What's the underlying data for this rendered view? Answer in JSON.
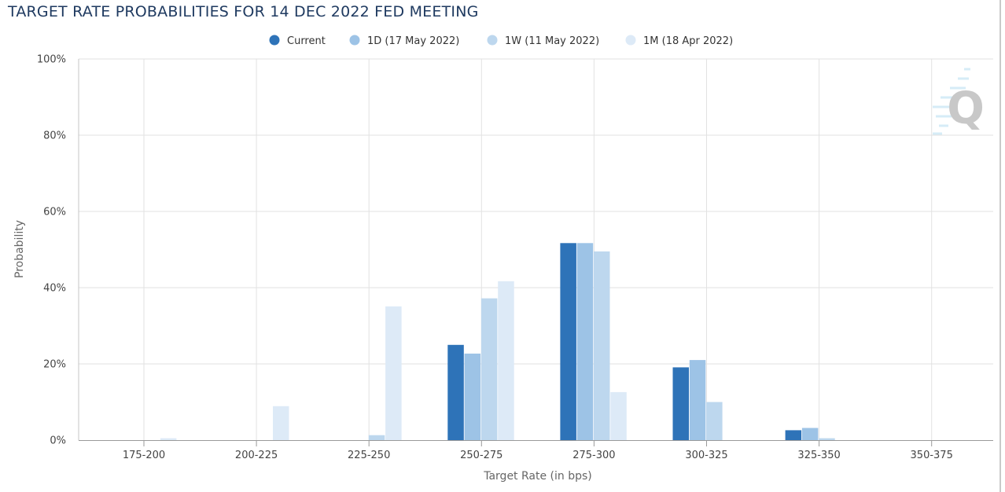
{
  "chart_data": {
    "type": "bar",
    "title": "TARGET RATE PROBABILITIES FOR 14 DEC 2022 FED MEETING",
    "xlabel": "Target Rate (in bps)",
    "ylabel": "Probability",
    "ylim": [
      0,
      100
    ],
    "y_ticks": [
      "0%",
      "20%",
      "40%",
      "60%",
      "80%",
      "100%"
    ],
    "legend_position": "top-center",
    "grid": true,
    "categories": [
      "175-200",
      "200-225",
      "225-250",
      "250-275",
      "275-300",
      "300-325",
      "325-350",
      "350-375"
    ],
    "series": [
      {
        "name": "Current",
        "color": "#2e73b8",
        "values": [
          0,
          0,
          0,
          25.0,
          51.7,
          19.1,
          2.6,
          0
        ]
      },
      {
        "name": "1D (17 May 2022)",
        "color": "#9dc3e6",
        "values": [
          0,
          0,
          0,
          22.7,
          51.7,
          21.0,
          3.2,
          0
        ]
      },
      {
        "name": "1W (11 May 2022)",
        "color": "#bdd7ee",
        "values": [
          0,
          0,
          1.3,
          37.2,
          49.5,
          10.0,
          0.5,
          0
        ]
      },
      {
        "name": "1M (18 Apr 2022)",
        "color": "#ddeaf7",
        "values": [
          0.5,
          8.9,
          35.1,
          41.7,
          12.6,
          0,
          0,
          0
        ]
      }
    ]
  },
  "watermark": {
    "letter": "Q",
    "color": "#c8c8c8"
  }
}
